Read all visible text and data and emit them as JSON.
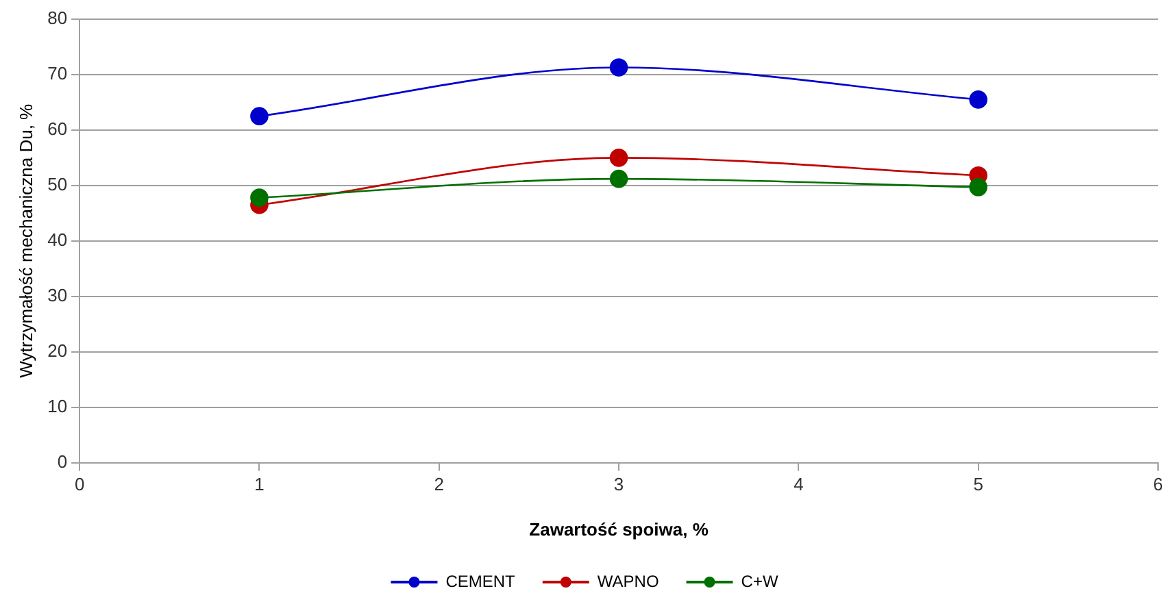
{
  "chart_data": {
    "type": "line",
    "xlabel": "Zawartość spoiwa, %",
    "ylabel": "Wytrzymałość mechaniczna Du, %",
    "x": [
      1,
      3,
      5
    ],
    "series": [
      {
        "name": "CEMENT",
        "color": "#0000cc",
        "values": [
          62.5,
          71.3,
          65.5
        ]
      },
      {
        "name": "WAPNO",
        "color": "#c00000",
        "values": [
          46.5,
          55,
          51.8
        ]
      },
      {
        "name": "C+W",
        "color": "#007000",
        "values": [
          47.8,
          51.2,
          49.7
        ]
      }
    ],
    "xlim": [
      0,
      6
    ],
    "xticks": [
      0,
      1,
      2,
      3,
      4,
      5,
      6
    ],
    "ylim": [
      0,
      80
    ],
    "yticks": [
      0,
      10,
      20,
      30,
      40,
      50,
      60,
      70,
      80
    ],
    "grid": "y",
    "legend": "bottom",
    "marker": "circle",
    "line_style": "solid"
  }
}
